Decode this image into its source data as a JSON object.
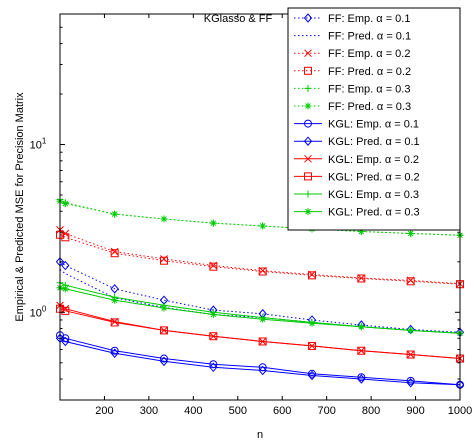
{
  "chart_data": {
    "type": "line",
    "title": "KGlasso & FF",
    "xlabel": "n",
    "ylabel": "Empirical & Predicted MSE for Precision Matrix",
    "xlim": [
      100,
      1000
    ],
    "xticks": [
      200,
      300,
      400,
      500,
      600,
      700,
      800,
      900,
      1000
    ],
    "ylim": [
      0.3,
      60
    ],
    "yscale": "log",
    "yticks": [
      1,
      10
    ],
    "ytick_labels": [
      "10^0",
      "10^1"
    ],
    "grid": false,
    "legend_position": "top-right",
    "x": [
      100,
      112,
      223,
      334,
      445,
      556,
      667,
      778,
      889,
      1000
    ],
    "series": [
      {
        "name": "FF: Emp. α = 0.1",
        "color": "#0000ff",
        "dash": "dotted",
        "marker": "diamond",
        "values": [
          2.0,
          1.9,
          1.38,
          1.18,
          1.03,
          0.98,
          0.9,
          0.84,
          0.79,
          0.76
        ]
      },
      {
        "name": "FF: Pred. α = 0.1",
        "color": "#0000ff",
        "dash": "dotted",
        "marker": "none",
        "values": [
          1.8,
          1.7,
          1.22,
          1.07,
          0.97,
          0.93,
          0.87,
          0.82,
          0.78,
          0.75
        ]
      },
      {
        "name": "FF: Emp. α = 0.2",
        "color": "#ff0000",
        "dash": "dotted",
        "marker": "x",
        "values": [
          3.1,
          2.95,
          2.3,
          2.08,
          1.9,
          1.77,
          1.68,
          1.6,
          1.55,
          1.48
        ]
      },
      {
        "name": "FF: Pred. α = 0.2",
        "color": "#ff0000",
        "dash": "dotted",
        "marker": "square",
        "values": [
          2.9,
          2.8,
          2.25,
          2.03,
          1.87,
          1.75,
          1.66,
          1.59,
          1.53,
          1.47
        ]
      },
      {
        "name": "FF: Emp. α = 0.3",
        "color": "#00cc00",
        "dash": "dotted",
        "marker": "plus",
        "values": [
          4.7,
          4.5,
          3.85,
          3.6,
          3.4,
          3.27,
          3.14,
          3.03,
          2.95,
          2.88
        ]
      },
      {
        "name": "FF: Pred. α = 0.3",
        "color": "#00cc00",
        "dash": "dotted",
        "marker": "star",
        "values": [
          4.6,
          4.45,
          3.85,
          3.6,
          3.4,
          3.27,
          3.14,
          3.03,
          2.95,
          2.88
        ]
      },
      {
        "name": "KGL: Emp. α = 0.1",
        "color": "#0000ff",
        "dash": "solid",
        "marker": "circle",
        "values": [
          0.73,
          0.7,
          0.59,
          0.53,
          0.49,
          0.47,
          0.43,
          0.41,
          0.39,
          0.37
        ]
      },
      {
        "name": "KGL: Pred. α = 0.1",
        "color": "#0000ff",
        "dash": "solid",
        "marker": "diamond",
        "values": [
          0.7,
          0.67,
          0.57,
          0.51,
          0.47,
          0.45,
          0.42,
          0.4,
          0.38,
          0.37
        ]
      },
      {
        "name": "KGL: Emp. α = 0.2",
        "color": "#ff0000",
        "dash": "solid",
        "marker": "x",
        "values": [
          1.1,
          1.05,
          0.88,
          0.78,
          0.72,
          0.67,
          0.63,
          0.59,
          0.56,
          0.53
        ]
      },
      {
        "name": "KGL: Pred. α = 0.2",
        "color": "#ff0000",
        "dash": "solid",
        "marker": "square",
        "values": [
          1.05,
          1.02,
          0.87,
          0.78,
          0.72,
          0.67,
          0.63,
          0.59,
          0.56,
          0.53
        ]
      },
      {
        "name": "KGL: Emp. α = 0.3",
        "color": "#00cc00",
        "dash": "solid",
        "marker": "plus",
        "values": [
          1.5,
          1.45,
          1.23,
          1.1,
          1.0,
          0.93,
          0.87,
          0.82,
          0.78,
          0.75
        ]
      },
      {
        "name": "KGL: Pred. α = 0.3",
        "color": "#00cc00",
        "dash": "solid",
        "marker": "star",
        "values": [
          1.4,
          1.38,
          1.18,
          1.06,
          0.97,
          0.91,
          0.86,
          0.82,
          0.78,
          0.75
        ]
      }
    ]
  }
}
